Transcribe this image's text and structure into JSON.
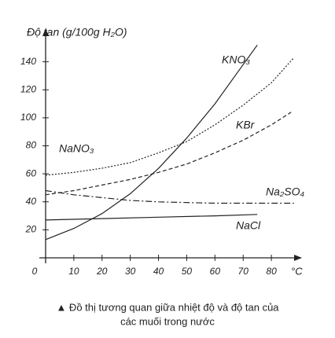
{
  "chart_data": {
    "type": "line",
    "y_label": "Độ tan (g/100g H₂O)",
    "x_label": "°C",
    "xlim": [
      0,
      90
    ],
    "ylim": [
      0,
      160
    ],
    "xticks": [
      0,
      10,
      20,
      30,
      40,
      50,
      60,
      70,
      80
    ],
    "yticks": [
      20,
      40,
      60,
      80,
      100,
      120,
      140
    ],
    "series": [
      {
        "name": "KNO₃",
        "color": "#222222",
        "dash": "solid",
        "x": [
          0,
          10,
          20,
          30,
          40,
          50,
          60,
          70,
          75
        ],
        "values": [
          13,
          21,
          31.6,
          45.8,
          63.9,
          85.5,
          110,
          138,
          152
        ]
      },
      {
        "name": "NaNO₃",
        "color": "#222222",
        "dash": "dotted",
        "x": [
          0,
          10,
          20,
          30,
          40,
          50,
          60,
          70,
          80,
          88
        ],
        "values": [
          59,
          61,
          64,
          68,
          75,
          83,
          95,
          109,
          125,
          143
        ]
      },
      {
        "name": "KBr",
        "color": "#222222",
        "dash": "dashed",
        "x": [
          0,
          10,
          20,
          30,
          40,
          50,
          60,
          70,
          80,
          87
        ],
        "values": [
          45,
          48,
          52,
          56,
          61,
          67,
          75,
          84,
          95,
          104
        ]
      },
      {
        "name": "Na₂SO₄",
        "color": "#222222",
        "dash": "dashdot",
        "x": [
          0,
          10,
          20,
          30,
          40,
          60,
          80,
          88
        ],
        "values": [
          48,
          45,
          43,
          41,
          40,
          39,
          39,
          39
        ]
      },
      {
        "name": "NaCl",
        "color": "#222222",
        "dash": "solid",
        "x": [
          0,
          20,
          40,
          60,
          75
        ],
        "values": [
          27,
          28,
          29,
          30,
          31
        ]
      }
    ],
    "caption": [
      "▲ Đồ thị tương quan giữa nhiệt độ và độ tan của",
      "các muối trong nước"
    ]
  }
}
